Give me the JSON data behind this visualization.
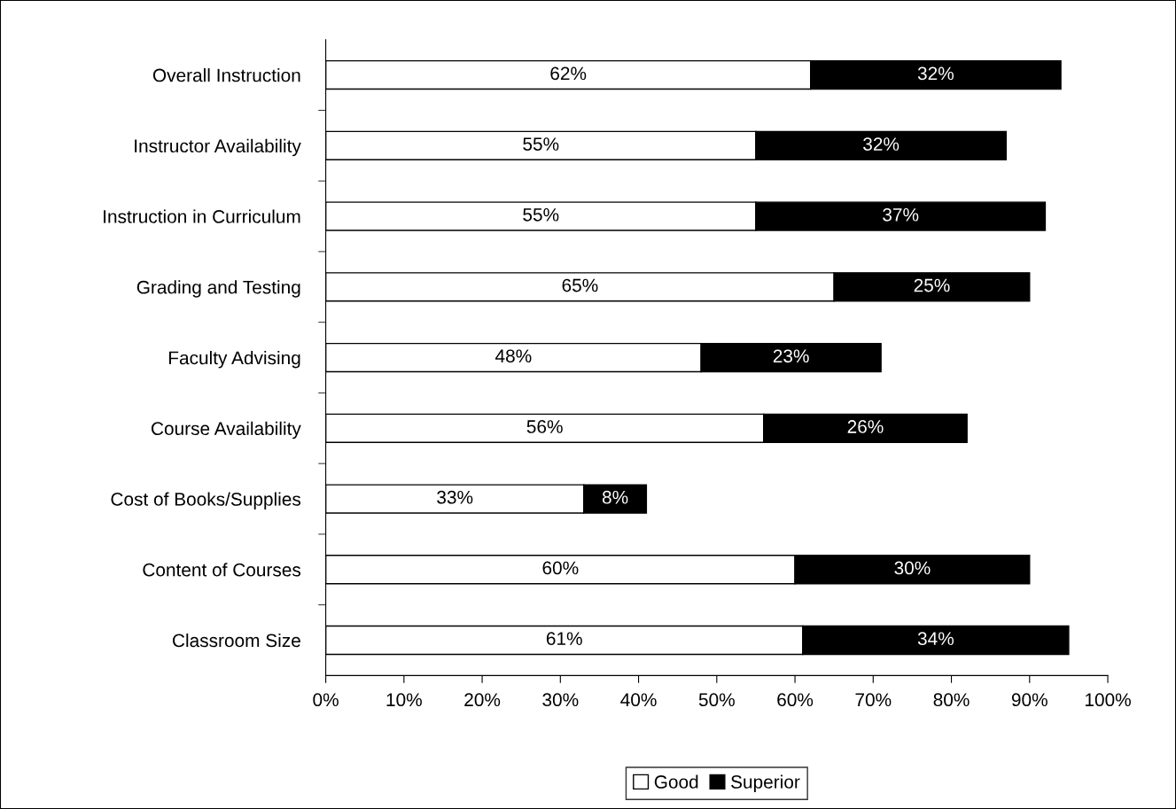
{
  "chart_data": {
    "type": "bar",
    "orientation": "horizontal",
    "stacked": true,
    "categories": [
      "Overall Instruction",
      "Instructor Availability",
      "Instruction in Curriculum",
      "Grading and Testing",
      "Faculty Advising",
      "Course Availability",
      "Cost of Books/Supplies",
      "Content of Courses",
      "Classroom Size"
    ],
    "series": [
      {
        "name": "Good",
        "color": "#ffffff",
        "values": [
          62,
          55,
          55,
          65,
          48,
          56,
          33,
          60,
          61
        ],
        "value_labels": [
          "62%",
          "55%",
          "55%",
          "65%",
          "48%",
          "56%",
          "33%",
          "60%",
          "61%"
        ]
      },
      {
        "name": "Superior",
        "color": "#000000",
        "values": [
          32,
          32,
          37,
          25,
          23,
          26,
          8,
          30,
          34
        ],
        "value_labels": [
          "32%",
          "32%",
          "37%",
          "25%",
          "23%",
          "26%",
          "8%",
          "30%",
          "34%"
        ]
      }
    ],
    "xlim": [
      0,
      100
    ],
    "xticks": [
      {
        "value": 0,
        "label": "0%"
      },
      {
        "value": 10,
        "label": "10%"
      },
      {
        "value": 20,
        "label": "20%"
      },
      {
        "value": 30,
        "label": "30%"
      },
      {
        "value": 40,
        "label": "40%"
      },
      {
        "value": 50,
        "label": "50%"
      },
      {
        "value": 60,
        "label": "60%"
      },
      {
        "value": 70,
        "label": "70%"
      },
      {
        "value": 80,
        "label": "80%"
      },
      {
        "value": 90,
        "label": "90%"
      },
      {
        "value": 100,
        "label": "100%"
      }
    ],
    "grid": false,
    "legend": "bottom"
  }
}
